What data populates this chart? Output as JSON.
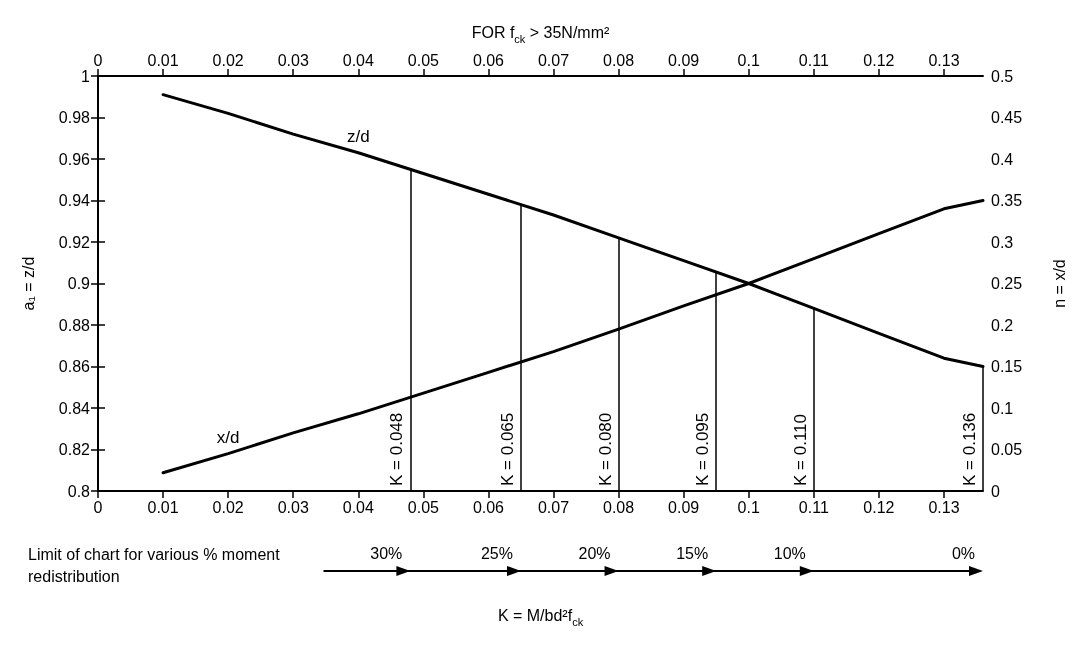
{
  "chart_data": {
    "type": "line",
    "x2label": "FOR f$_{ck}$ > 35N/mm²",
    "ylabel": "a₁ = z/d",
    "y2label": "n = x/d",
    "x": [
      0.01,
      0.02,
      0.03,
      0.04,
      0.05,
      0.06,
      0.07,
      0.08,
      0.09,
      0.1,
      0.11,
      0.12,
      0.13,
      0.136
    ],
    "series": [
      {
        "name": "z/d",
        "color": "#000000",
        "values": [
          0.991,
          0.982,
          0.972,
          0.963,
          0.953,
          0.943,
          0.933,
          0.922,
          0.911,
          0.9,
          0.888,
          0.876,
          0.864,
          0.86
        ]
      },
      {
        "name": "x/d",
        "color": "#000000",
        "axis": "y2",
        "values": [
          0.022,
          0.045,
          0.07,
          0.093,
          0.118,
          0.143,
          0.168,
          0.195,
          0.223,
          0.25,
          0.28,
          0.31,
          0.34,
          0.35
        ]
      }
    ],
    "xlim": [
      0,
      0.136
    ],
    "xticks": [
      0,
      0.01,
      0.02,
      0.03,
      0.04,
      0.05,
      0.06,
      0.07,
      0.08,
      0.09,
      0.1,
      0.11,
      0.12,
      0.13
    ],
    "x2lim": [
      0,
      0.136
    ],
    "x2ticks": [
      0,
      0.01,
      0.02,
      0.03,
      0.04,
      0.05,
      0.06,
      0.07,
      0.08,
      0.09,
      0.1,
      0.11,
      0.12,
      0.13
    ],
    "ylim": [
      0.8,
      1
    ],
    "yticks": [
      0.8,
      0.82,
      0.84,
      0.86,
      0.88,
      0.9,
      0.92,
      0.94,
      0.96,
      0.98,
      1
    ],
    "y2lim": [
      0,
      0.5
    ],
    "y2ticks": [
      0,
      0.05,
      0.1,
      0.15,
      0.2,
      0.25,
      0.3,
      0.35,
      0.4,
      0.45,
      0.5
    ],
    "ref_lines": [
      {
        "axis": "x",
        "value": 0.048,
        "label": "K = 0.048"
      },
      {
        "axis": "x",
        "value": 0.065,
        "label": "K = 0.065"
      },
      {
        "axis": "x",
        "value": 0.08,
        "label": "K = 0.080"
      },
      {
        "axis": "x",
        "value": 0.095,
        "label": "K = 0.095"
      },
      {
        "axis": "x",
        "value": 0.11,
        "label": "K = 0.110"
      },
      {
        "axis": "x",
        "value": 0.136,
        "label": "K = 0.136"
      }
    ],
    "annotations": [
      "Limit of chart for various % moment redistribution",
      "30%",
      "25%",
      "20%",
      "15%",
      "10%",
      "0%",
      "K = M/bd²f$_{ck}$"
    ],
    "grid": false,
    "legend": false,
    "marker": "none",
    "line_style": "solid"
  }
}
